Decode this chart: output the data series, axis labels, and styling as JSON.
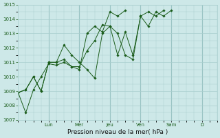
{
  "xlabel": "Pression niveau de la mer( hPa )",
  "bg_color": "#cde8e8",
  "line_color": "#1a5c1a",
  "grid_color": "#a8cece",
  "dark_grid_color": "#7aaeae",
  "ylim": [
    1007,
    1015
  ],
  "yticks": [
    1007,
    1008,
    1009,
    1010,
    1011,
    1012,
    1013,
    1014,
    1015
  ],
  "x_day_labels": [
    "Lun",
    "Mer",
    "Jeu",
    "Ven",
    "Sam",
    "D"
  ],
  "x_day_positions": [
    24,
    48,
    72,
    96,
    120,
    144
  ],
  "xlim": [
    0,
    156
  ],
  "series1_x": [
    0,
    6,
    12,
    18,
    24,
    30,
    36,
    42,
    48,
    54,
    60,
    66,
    72,
    78,
    84,
    90,
    96,
    102,
    108,
    114,
    120
  ],
  "series1_y": [
    1008.9,
    1007.5,
    1009.1,
    1010.0,
    1010.9,
    1010.8,
    1011.0,
    1010.7,
    1010.7,
    1011.8,
    1012.5,
    1013.6,
    1013.5,
    1013.0,
    1011.5,
    1011.2,
    1014.2,
    1013.5,
    1014.5,
    1014.2,
    1014.6
  ],
  "series2_x": [
    0,
    6,
    12,
    18,
    24,
    30,
    36,
    42,
    48,
    54,
    60,
    66,
    72,
    78,
    84,
    90,
    96,
    102,
    108,
    114
  ],
  "series2_y": [
    1008.9,
    1009.1,
    1010.0,
    1009.0,
    1011.0,
    1011.0,
    1012.2,
    1011.5,
    1011.0,
    1010.5,
    1009.9,
    1013.0,
    1013.5,
    1011.5,
    1013.1,
    1011.5,
    1014.2,
    1014.5,
    1014.2,
    1014.6
  ],
  "series3_x": [
    0,
    6,
    12,
    18,
    24,
    30,
    36,
    42,
    48,
    54,
    60,
    66,
    72,
    78,
    84
  ],
  "series3_y": [
    1008.9,
    1009.1,
    1010.0,
    1009.0,
    1011.0,
    1011.0,
    1011.2,
    1010.7,
    1010.5,
    1013.0,
    1013.5,
    1013.1,
    1014.5,
    1014.2,
    1014.6
  ],
  "ylabel_fontsize": 5.0,
  "xlabel_fontsize": 6.5,
  "tick_labelsize": 5.0,
  "marker_size": 1.8,
  "linewidth": 0.7
}
